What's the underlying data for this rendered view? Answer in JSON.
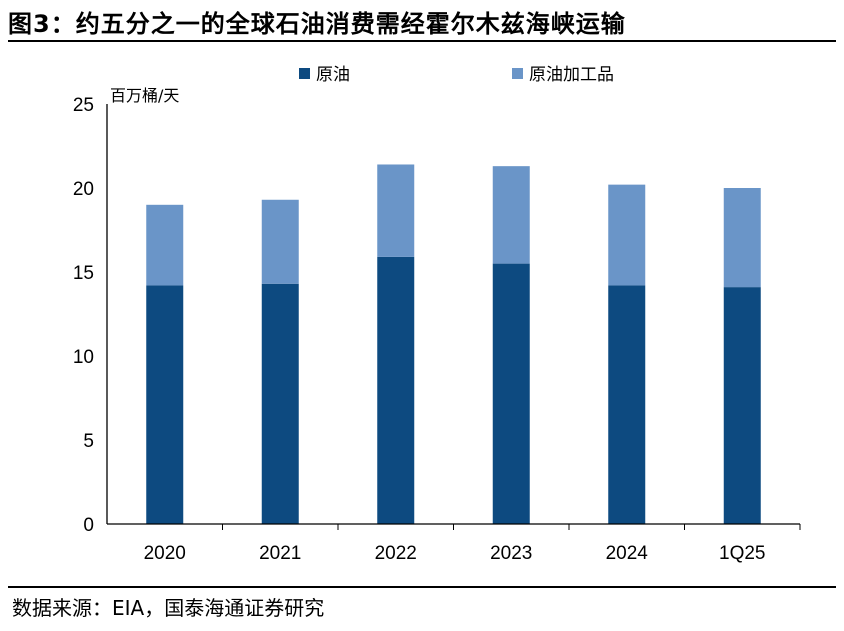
{
  "title": "图3：约五分之一的全球石油消费需经霍尔木兹海峡运输",
  "source": "数据来源：EIA，国泰海通证券研究",
  "colors": {
    "crude": "#0d4a80",
    "products": "#6a95c8"
  },
  "chart_data": {
    "type": "bar",
    "stacked": true,
    "unit_label": "百万桶/天",
    "categories": [
      "2020",
      "2021",
      "2022",
      "2023",
      "2024",
      "1Q25"
    ],
    "series": [
      {
        "name": "原油",
        "values": [
          14.2,
          14.3,
          15.9,
          15.5,
          14.2,
          14.1
        ]
      },
      {
        "name": "原油加工品",
        "values": [
          4.8,
          5.0,
          5.5,
          5.8,
          6.0,
          5.9
        ]
      }
    ],
    "ylim": [
      0,
      25
    ],
    "yticks": [
      "0",
      "5",
      "10",
      "15",
      "20",
      "25"
    ],
    "legend_position": "top",
    "grid": false
  }
}
